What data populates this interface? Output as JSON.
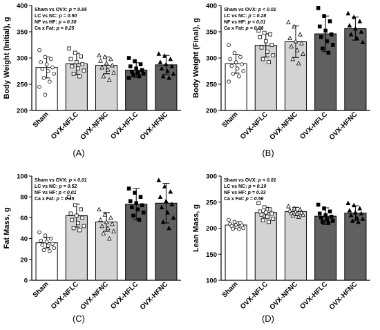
{
  "colors": {
    "Sham": "#ffffff",
    "OVX-NFLC": "#d3d3d3",
    "OVX-NFNC": "#d3d3d3",
    "OVX-HFLC": "#606060",
    "OVX-HFNC": "#606060",
    "axis": "#000000"
  },
  "chart_data": [
    {
      "type": "bar",
      "panel_label": "(A)",
      "ylabel": "Body Weight (Initial), g",
      "ylim": [
        200,
        400
      ],
      "yticks": [
        200,
        250,
        300,
        350,
        400
      ],
      "categories": [
        "Sham",
        "OVX-NFLC",
        "OVX-NFNC",
        "OVX-HFLC",
        "OVX-HFNC"
      ],
      "values": [
        282,
        289,
        286,
        277,
        287
      ],
      "errors": [
        20,
        20,
        16,
        14,
        18
      ],
      "points": [
        [
          315,
          302,
          298,
          292,
          288,
          282,
          279,
          275,
          270,
          262,
          255,
          245,
          230
        ],
        [
          318,
          310,
          303,
          298,
          292,
          288,
          284,
          280,
          276,
          270,
          265
        ],
        [
          305,
          302,
          298,
          295,
          290,
          286,
          282,
          278,
          272,
          265,
          258
        ],
        [
          300,
          294,
          288,
          284,
          280,
          277,
          274,
          272,
          270,
          268,
          265,
          262
        ],
        [
          308,
          304,
          298,
          292,
          288,
          284,
          280,
          275,
          270,
          265,
          262
        ]
      ],
      "markers": [
        "circle-open",
        "square-open",
        "triangle-open",
        "square-filled",
        "triangle-filled"
      ],
      "stats": [
        {
          "label": "Sham vs OVX: ",
          "p": "p = 0.65"
        },
        {
          "label": "LC vs NC: ",
          "p": "p = 0.50"
        },
        {
          "label": "NF vs HF: ",
          "p": "p = 0.30"
        },
        {
          "label": "Ca x Fat: ",
          "p": "p = 0.25"
        }
      ]
    },
    {
      "type": "bar",
      "panel_label": "(B)",
      "ylabel": "Body Weight (Final), g",
      "ylim": [
        200,
        400
      ],
      "yticks": [
        200,
        250,
        300,
        350,
        400
      ],
      "categories": [
        "Sham",
        "OVX-NFLC",
        "OVX-NFNC",
        "OVX-HFLC",
        "OVX-HFNC"
      ],
      "values": [
        289,
        324,
        331,
        346,
        356
      ],
      "errors": [
        18,
        22,
        30,
        34,
        22
      ],
      "points": [
        [
          325,
          310,
          302,
          298,
          292,
          288,
          285,
          280,
          275,
          270,
          265,
          255
        ],
        [
          352,
          348,
          345,
          340,
          332,
          325,
          320,
          312,
          305,
          298,
          292
        ],
        [
          368,
          360,
          345,
          338,
          332,
          328,
          322,
          315,
          308,
          298,
          290
        ],
        [
          395,
          380,
          370,
          360,
          352,
          345,
          340,
          332,
          325,
          318,
          310
        ],
        [
          385,
          378,
          370,
          362,
          356,
          350,
          345,
          338,
          330
        ]
      ],
      "markers": [
        "circle-open",
        "square-open",
        "triangle-open",
        "square-filled",
        "triangle-filled"
      ],
      "stats": [
        {
          "label": "Sham vs OVX: ",
          "p": "p < 0.01"
        },
        {
          "label": "LC vs NC: ",
          "p": "p = 0.28"
        },
        {
          "label": "NF vs HF: ",
          "p": "p < 0.01"
        },
        {
          "label": "Ca x Fat: ",
          "p": "p = 0.88"
        }
      ]
    },
    {
      "type": "bar",
      "panel_label": "(C)",
      "ylabel": "Fat Mass, g",
      "ylim": [
        0,
        100
      ],
      "yticks": [
        0,
        20,
        40,
        60,
        80,
        100
      ],
      "categories": [
        "Sham",
        "OVX-NFLC",
        "OVX-NFNC",
        "OVX-HFLC",
        "OVX-HFNC"
      ],
      "values": [
        36,
        62,
        56,
        73,
        74
      ],
      "errors": [
        5,
        11,
        9,
        15,
        19
      ],
      "points": [
        [
          46,
          43,
          40,
          38,
          37,
          35,
          34,
          33,
          31,
          29,
          28
        ],
        [
          80,
          72,
          68,
          64,
          62,
          60,
          58,
          55,
          52,
          50,
          48
        ],
        [
          68,
          63,
          60,
          58,
          56,
          54,
          52,
          50,
          47,
          45,
          40
        ],
        [
          88,
          84,
          80,
          76,
          74,
          72,
          70,
          68,
          65,
          62,
          58
        ],
        [
          96,
          90,
          85,
          80,
          76,
          73,
          70,
          65,
          60,
          56,
          50
        ]
      ],
      "markers": [
        "circle-open",
        "square-open",
        "triangle-open",
        "square-filled",
        "triangle-filled"
      ],
      "stats": [
        {
          "label": "Sham vs OVX: ",
          "p": "p < 0.01"
        },
        {
          "label": "LC vs NC: ",
          "p": "p = 0.52"
        },
        {
          "label": "NF vs HF: ",
          "p": "p < 0.01"
        },
        {
          "label": "Ca x Fat: ",
          "p": "p = 0.45"
        }
      ]
    },
    {
      "type": "bar",
      "panel_label": "(D)",
      "ylabel": "Lean Mass, g",
      "ylim": [
        100,
        300
      ],
      "yticks": [
        100,
        150,
        200,
        250,
        300
      ],
      "categories": [
        "Sham",
        "OVX-NFLC",
        "OVX-NFNC",
        "OVX-HFLC",
        "OVX-HFNC"
      ],
      "values": [
        206,
        230,
        232,
        223,
        229
      ],
      "errors": [
        6,
        10,
        8,
        16,
        14
      ],
      "points": [
        [
          216,
          212,
          210,
          208,
          206,
          205,
          204,
          202,
          200,
          199,
          198
        ],
        [
          248,
          240,
          236,
          232,
          230,
          228,
          226,
          222,
          218,
          215,
          212
        ],
        [
          242,
          238,
          236,
          234,
          232,
          230,
          229,
          228,
          226,
          224,
          222
        ],
        [
          245,
          238,
          232,
          228,
          225,
          222,
          220,
          217,
          214,
          212,
          210
        ],
        [
          248,
          244,
          238,
          234,
          230,
          228,
          225,
          220,
          218,
          214,
          212
        ]
      ],
      "markers": [
        "circle-open",
        "square-open",
        "triangle-open",
        "square-filled",
        "triangle-filled"
      ],
      "stats": [
        {
          "label": "Sham vs OVX: ",
          "p": "p < 0.01"
        },
        {
          "label": "LC vs NC: ",
          "p": "p = 0.19"
        },
        {
          "label": "NF vs HF: ",
          "p": "p = 0.33"
        },
        {
          "label": "Ca x Fat: ",
          "p": "p = 0.56"
        }
      ]
    }
  ]
}
